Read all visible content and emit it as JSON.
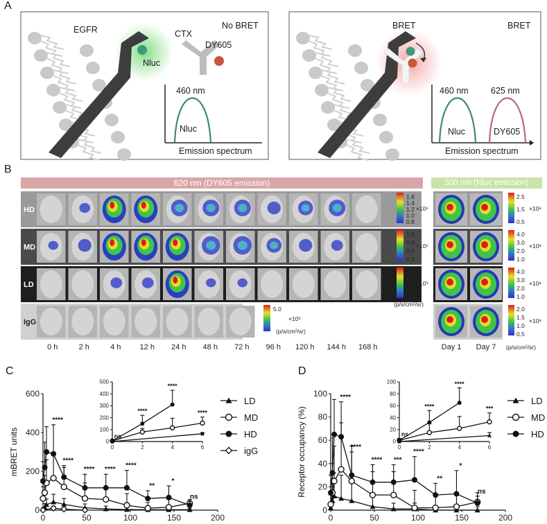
{
  "panel_labels": {
    "a": "A",
    "b": "B",
    "c": "C",
    "d": "D"
  },
  "panel_a": {
    "left": {
      "egfr": "EGFR",
      "ctx": "CTX",
      "no_bret": "No BRET",
      "dy605": "DY605",
      "nluc": "Nluc",
      "peak": "460 nm",
      "curve_label": "Nluc",
      "xaxis": "Emission spectrum"
    },
    "right": {
      "bret": "BRET",
      "bret_title": "BRET",
      "peak1": "460 nm",
      "peak2": "625 nm",
      "curve1": "Nluc",
      "curve2": "DY605",
      "xaxis": "Emission spectrum"
    }
  },
  "panel_b": {
    "band_620": "620 nm (DY605 emission)",
    "band_500": "500 nm (Nluc emission)",
    "rows": [
      "HD",
      "MD",
      "LD",
      "IgG"
    ],
    "timepoints": [
      "0 h",
      "2 h",
      "4 h",
      "12 h",
      "24 h",
      "48 h",
      "72 h",
      "96 h",
      "120 h",
      "144 h",
      "168 h"
    ],
    "days": [
      "Day 1",
      "Day 7"
    ],
    "unit": "(p/s/cm²/sr)",
    "scale_620": [
      {
        "ticks": [
          "1.6",
          "1.4",
          "1.2",
          "1.0",
          "0.8"
        ],
        "mult": "×10⁶"
      },
      {
        "ticks": [
          "1.0",
          "0.8",
          "0.6",
          "0.4"
        ],
        "mult": "×10⁶"
      },
      {
        "ticks": [
          "6.5",
          "6.0",
          "5.5"
        ],
        "mult": "×10⁵"
      },
      {
        "ticks": [
          "5.0"
        ],
        "mult": "×10⁵"
      }
    ],
    "scale_500": [
      {
        "ticks": [
          "2.5",
          "1.5",
          "0.5"
        ],
        "mult": "×10⁸"
      },
      {
        "ticks": [
          "4.0",
          "3.0",
          "2.0",
          "1.0"
        ],
        "mult": "×10⁸"
      },
      {
        "ticks": [
          "4.0",
          "3.0",
          "2.0",
          "1.0"
        ],
        "mult": "×10⁸"
      },
      {
        "ticks": [
          "2.0",
          "1.5",
          "1.0",
          "0.5"
        ],
        "mult": "×10⁸"
      }
    ]
  },
  "chart_data": [
    {
      "type": "line",
      "panel": "C",
      "ylabel": "mBRET units",
      "xlim": [
        0,
        200
      ],
      "ylim": [
        0,
        600
      ],
      "xticks": [
        0,
        50,
        100,
        150,
        200
      ],
      "yticks": [
        0,
        200,
        400,
        600
      ],
      "legend_position": "right",
      "series": [
        {
          "name": "LD",
          "marker": "triangle-filled",
          "x": [
            0,
            2,
            4,
            12,
            24,
            48,
            72,
            96,
            120,
            144,
            168
          ],
          "y": [
            5,
            14,
            28,
            42,
            30,
            12,
            6,
            3,
            2,
            2,
            2
          ],
          "err": [
            8,
            20,
            30,
            40,
            30,
            20,
            15,
            10,
            8,
            8,
            6
          ]
        },
        {
          "name": "MD",
          "marker": "circle-open",
          "x": [
            0,
            2,
            4,
            12,
            24,
            48,
            72,
            96,
            120,
            144,
            168
          ],
          "y": [
            60,
            90,
            140,
            165,
            120,
            60,
            55,
            25,
            10,
            15,
            35
          ],
          "err": [
            60,
            90,
            120,
            130,
            100,
            80,
            60,
            60,
            30,
            40,
            20
          ]
        },
        {
          "name": "HD",
          "marker": "circle-filled",
          "x": [
            0,
            2,
            4,
            12,
            24,
            48,
            72,
            96,
            120,
            144,
            168
          ],
          "y": [
            150,
            220,
            300,
            290,
            170,
            115,
            115,
            115,
            60,
            65,
            25
          ],
          "err": [
            100,
            130,
            130,
            150,
            60,
            70,
            70,
            90,
            40,
            60,
            20
          ]
        },
        {
          "name": "igG",
          "marker": "diamond-open",
          "x": [
            0,
            12,
            24,
            48
          ],
          "y": [
            0,
            10,
            5,
            0
          ],
          "err": [
            5,
            10,
            8,
            5
          ]
        }
      ],
      "significance": [
        {
          "x": 12,
          "label": "****"
        },
        {
          "x": 24,
          "label": "****"
        },
        {
          "x": 48,
          "label": "****"
        },
        {
          "x": 72,
          "label": "****"
        },
        {
          "x": 96,
          "label": "****"
        },
        {
          "x": 120,
          "label": "**"
        },
        {
          "x": 144,
          "label": "*"
        },
        {
          "x": 168,
          "label": "ns"
        }
      ],
      "inset": {
        "xlim": [
          0,
          6
        ],
        "ylim": [
          0,
          500
        ],
        "xticks": [
          0,
          2,
          4,
          6
        ],
        "yticks": [
          0,
          100,
          200,
          300,
          400,
          500
        ],
        "series": [
          {
            "name": "LD",
            "marker": "square-filled",
            "x": [
              0,
              6
            ],
            "y": [
              0,
              65
            ],
            "err": [
              5,
              10
            ]
          },
          {
            "name": "MD",
            "marker": "circle-open",
            "x": [
              0,
              2,
              4,
              6
            ],
            "y": [
              5,
              80,
              115,
              155
            ],
            "err": [
              5,
              30,
              80,
              50
            ]
          },
          {
            "name": "HD",
            "marker": "circle-filled",
            "x": [
              0,
              2,
              4
            ],
            "y": [
              5,
              150,
              310
            ],
            "err": [
              5,
              70,
              120
            ]
          }
        ],
        "significance": [
          {
            "x": 0,
            "label": "ns"
          },
          {
            "x": 2,
            "label": "****"
          },
          {
            "x": 4,
            "label": "****"
          },
          {
            "x": 6,
            "label": "****"
          }
        ]
      }
    },
    {
      "type": "line",
      "panel": "D",
      "ylabel": "Receptor occupancy (%)",
      "xlim": [
        0,
        200
      ],
      "ylim": [
        0,
        100
      ],
      "xticks": [
        0,
        50,
        100,
        150,
        200
      ],
      "yticks": [
        0,
        20,
        40,
        60,
        80,
        100
      ],
      "legend_position": "right",
      "series": [
        {
          "name": "LD",
          "marker": "triangle-filled",
          "x": [
            0,
            2,
            4,
            12,
            24,
            48,
            72,
            96,
            120,
            144,
            168
          ],
          "y": [
            2,
            8,
            12,
            10,
            8,
            3,
            1,
            1,
            0,
            0,
            0
          ],
          "err": [
            5,
            15,
            20,
            20,
            15,
            10,
            5,
            5,
            3,
            3,
            3
          ]
        },
        {
          "name": "MD",
          "marker": "circle-open",
          "x": [
            0,
            2,
            4,
            12,
            24,
            48,
            72,
            96,
            120,
            144,
            168
          ],
          "y": [
            5,
            15,
            25,
            35,
            25,
            13,
            13,
            2,
            2,
            3,
            7
          ],
          "err": [
            8,
            25,
            30,
            40,
            30,
            20,
            20,
            15,
            10,
            10,
            8
          ]
        },
        {
          "name": "HD",
          "marker": "circle-filled",
          "x": [
            0,
            2,
            4,
            12,
            24,
            48,
            72,
            96,
            120,
            144,
            168
          ],
          "y": [
            15,
            32,
            65,
            63,
            30,
            24,
            24,
            26,
            13,
            14,
            6
          ],
          "err": [
            15,
            30,
            30,
            30,
            20,
            15,
            15,
            20,
            10,
            20,
            6
          ]
        }
      ],
      "significance": [
        {
          "x": 12,
          "label": "****"
        },
        {
          "x": 24,
          "label": "****"
        },
        {
          "x": 48,
          "label": "****"
        },
        {
          "x": 72,
          "label": "***"
        },
        {
          "x": 96,
          "label": "****"
        },
        {
          "x": 120,
          "label": "**"
        },
        {
          "x": 144,
          "label": "*"
        },
        {
          "x": 168,
          "label": "ns"
        }
      ],
      "inset": {
        "xlim": [
          0,
          6
        ],
        "ylim": [
          0,
          100
        ],
        "xticks": [
          0,
          2,
          4,
          6
        ],
        "yticks": [
          0,
          20,
          40,
          60,
          80,
          100
        ],
        "series": [
          {
            "name": "LD",
            "marker": "triangle-filled",
            "x": [
              0,
              6
            ],
            "y": [
              0,
              10
            ],
            "err": [
              5,
              5
            ]
          },
          {
            "name": "MD",
            "marker": "circle-open",
            "x": [
              0,
              2,
              4,
              6
            ],
            "y": [
              2,
              15,
              22,
              33
            ],
            "err": [
              3,
              15,
              20,
              15
            ]
          },
          {
            "name": "HD",
            "marker": "circle-filled",
            "x": [
              0,
              2,
              4
            ],
            "y": [
              2,
              32,
              65
            ],
            "err": [
              3,
              20,
              25
            ]
          }
        ],
        "significance": [
          {
            "x": 0,
            "label": "ns"
          },
          {
            "x": 2,
            "label": "****"
          },
          {
            "x": 4,
            "label": "****"
          },
          {
            "x": 6,
            "label": "***"
          }
        ]
      }
    }
  ]
}
